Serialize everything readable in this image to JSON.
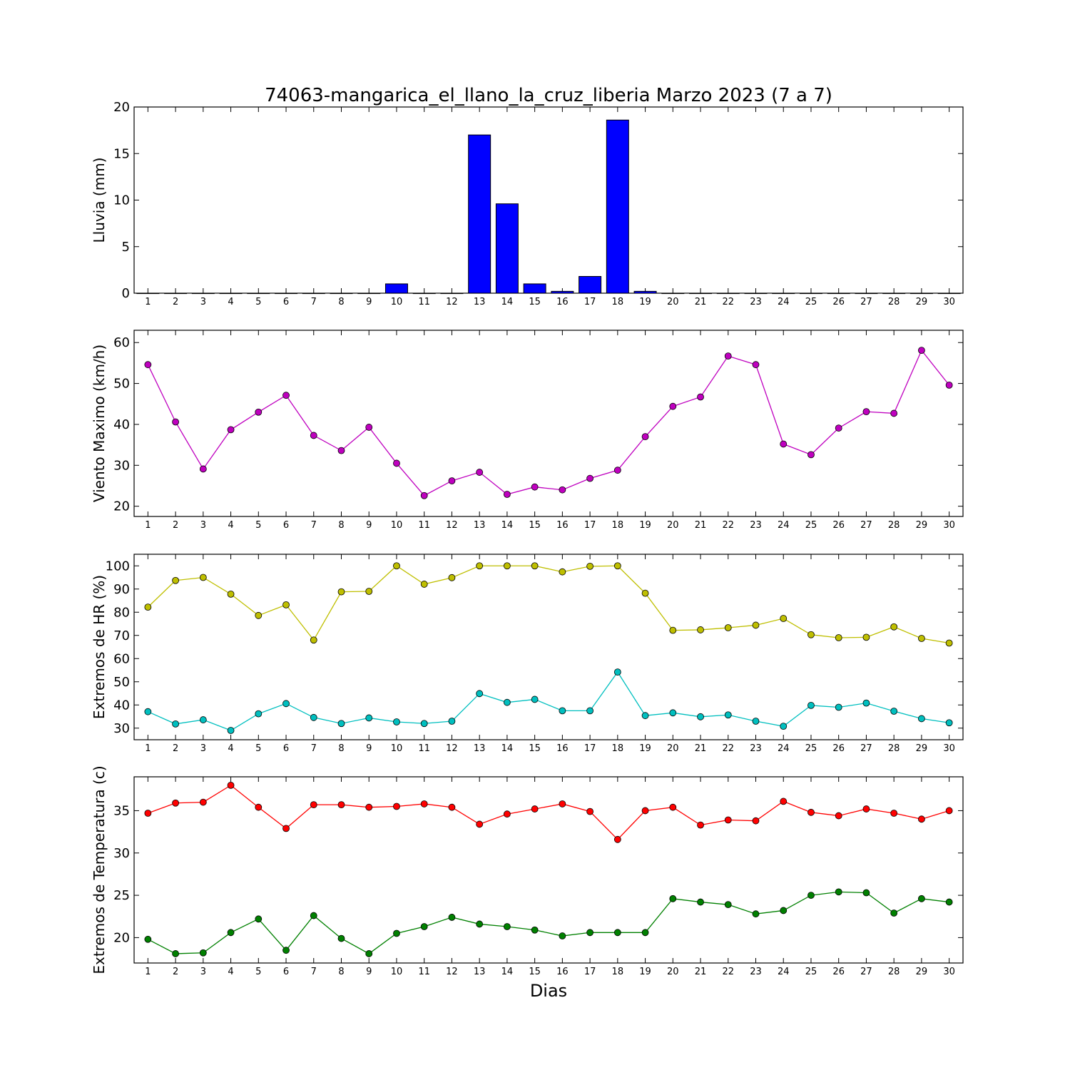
{
  "title": "74063-mangarica_el_llano_la_cruz_liberia Marzo 2023  (7 a 7)",
  "xlabel": "Dias",
  "chart_data": [
    {
      "type": "bar",
      "ylabel": "Lluvia (mm)",
      "x": [
        1,
        2,
        3,
        4,
        5,
        6,
        7,
        8,
        9,
        10,
        11,
        12,
        13,
        14,
        15,
        16,
        17,
        18,
        19,
        20,
        21,
        22,
        23,
        24,
        25,
        26,
        27,
        28,
        29,
        30
      ],
      "xlim": [
        0.5,
        30.5
      ],
      "ylim": [
        0,
        20
      ],
      "yticks": [
        0,
        5,
        10,
        15,
        20
      ],
      "series": [
        {
          "color": "#0000ff",
          "values": [
            0,
            0,
            0,
            0,
            0,
            0,
            0,
            0,
            0,
            1.0,
            0,
            0,
            17.0,
            9.6,
            1.0,
            0.2,
            1.8,
            18.6,
            0.2,
            0,
            0,
            0,
            0,
            0,
            0,
            0,
            0,
            0,
            0,
            0
          ]
        }
      ]
    },
    {
      "type": "line",
      "ylabel": "Viento Maximo (km/h)",
      "x": [
        1,
        2,
        3,
        4,
        5,
        6,
        7,
        8,
        9,
        10,
        11,
        12,
        13,
        14,
        15,
        16,
        17,
        18,
        19,
        20,
        21,
        22,
        23,
        24,
        25,
        26,
        27,
        28,
        29,
        30
      ],
      "xlim": [
        0.5,
        30.5
      ],
      "ylim": [
        17.5,
        63
      ],
      "yticks": [
        20,
        30,
        40,
        50,
        60
      ],
      "series": [
        {
          "color": "#bf00bf",
          "values": [
            54.6,
            40.6,
            29.1,
            38.7,
            43.0,
            47.1,
            37.3,
            33.6,
            39.3,
            30.5,
            22.6,
            26.2,
            28.3,
            22.9,
            24.7,
            24.0,
            26.8,
            28.8,
            37.0,
            44.4,
            46.7,
            56.7,
            54.6,
            35.2,
            32.6,
            39.1,
            43.1,
            42.7,
            58.1,
            49.6
          ]
        }
      ]
    },
    {
      "type": "line",
      "ylabel": "Extremos de HR (%)",
      "x": [
        1,
        2,
        3,
        4,
        5,
        6,
        7,
        8,
        9,
        10,
        11,
        12,
        13,
        14,
        15,
        16,
        17,
        18,
        19,
        20,
        21,
        22,
        23,
        24,
        25,
        26,
        27,
        28,
        29,
        30
      ],
      "xlim": [
        0.5,
        30.5
      ],
      "ylim": [
        25,
        105
      ],
      "yticks": [
        30,
        40,
        50,
        60,
        70,
        80,
        90,
        100
      ],
      "series": [
        {
          "color": "#bfbf00",
          "values": [
            82.2,
            93.7,
            95.0,
            87.8,
            78.6,
            83.2,
            68.0,
            88.8,
            89.0,
            100,
            92.1,
            94.9,
            100,
            100,
            100,
            97.4,
            99.8,
            100,
            88.2,
            72.2,
            72.4,
            73.3,
            74.4,
            77.3,
            70.3,
            69.0,
            69.2,
            73.7,
            68.7,
            66.7
          ]
        },
        {
          "color": "#00bfbf",
          "values": [
            37.1,
            31.8,
            33.6,
            29.0,
            36.2,
            40.6,
            34.6,
            32.0,
            34.4,
            32.7,
            32.0,
            33.0,
            44.9,
            41.1,
            42.4,
            37.5,
            37.5,
            54.2,
            35.4,
            36.6,
            34.9,
            35.7,
            33.0,
            30.8,
            39.8,
            39.0,
            40.8,
            37.3,
            34.1,
            32.3
          ]
        }
      ]
    },
    {
      "type": "line",
      "ylabel": "Extremos de Temperatura (c)",
      "x": [
        1,
        2,
        3,
        4,
        5,
        6,
        7,
        8,
        9,
        10,
        11,
        12,
        13,
        14,
        15,
        16,
        17,
        18,
        19,
        20,
        21,
        22,
        23,
        24,
        25,
        26,
        27,
        28,
        29,
        30
      ],
      "xlim": [
        0.5,
        30.5
      ],
      "ylim": [
        17,
        39
      ],
      "yticks": [
        20,
        25,
        30,
        35
      ],
      "series": [
        {
          "color": "#ff0000",
          "values": [
            34.7,
            35.9,
            36.0,
            38.0,
            35.4,
            32.9,
            35.7,
            35.7,
            35.4,
            35.5,
            35.8,
            35.4,
            33.4,
            34.6,
            35.2,
            35.8,
            34.9,
            31.6,
            35.0,
            35.4,
            33.3,
            33.9,
            33.8,
            36.1,
            34.8,
            34.4,
            35.2,
            34.7,
            34.0,
            35.0
          ]
        },
        {
          "color": "#008000",
          "values": [
            19.8,
            18.1,
            18.2,
            20.6,
            22.2,
            18.5,
            22.6,
            19.9,
            18.1,
            20.5,
            21.3,
            22.4,
            21.6,
            21.3,
            20.9,
            20.2,
            20.6,
            20.6,
            20.6,
            24.6,
            24.2,
            23.9,
            22.8,
            23.2,
            25.0,
            25.4,
            25.3,
            22.9,
            24.6,
            24.2
          ]
        }
      ]
    }
  ]
}
